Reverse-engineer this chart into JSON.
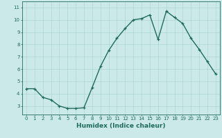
{
  "x": [
    0,
    1,
    2,
    3,
    4,
    5,
    6,
    7,
    8,
    9,
    10,
    11,
    12,
    13,
    14,
    15,
    16,
    17,
    18,
    19,
    20,
    21,
    22,
    23
  ],
  "y": [
    4.4,
    4.4,
    3.7,
    3.5,
    3.0,
    2.8,
    2.8,
    2.85,
    4.5,
    6.2,
    7.5,
    8.5,
    9.3,
    10.0,
    10.1,
    10.4,
    8.4,
    10.7,
    10.2,
    9.7,
    8.5,
    7.6,
    6.6,
    5.6
  ],
  "line_color": "#1e6b5e",
  "marker": "+",
  "marker_size": 3.5,
  "marker_linewidth": 0.9,
  "bg_color": "#cce9e9",
  "grid_color": "#aed4d4",
  "xlabel": "Humidex (Indice chaleur)",
  "xlim": [
    -0.5,
    23.5
  ],
  "ylim": [
    2.3,
    11.5
  ],
  "yticks": [
    3,
    4,
    5,
    6,
    7,
    8,
    9,
    10,
    11
  ],
  "xticks": [
    0,
    1,
    2,
    3,
    4,
    5,
    6,
    7,
    8,
    9,
    10,
    11,
    12,
    13,
    14,
    15,
    16,
    17,
    18,
    19,
    20,
    21,
    22,
    23
  ],
  "tick_fontsize": 5.0,
  "xlabel_fontsize": 6.5,
  "label_color": "#1e6b5e",
  "linewidth": 1.0
}
